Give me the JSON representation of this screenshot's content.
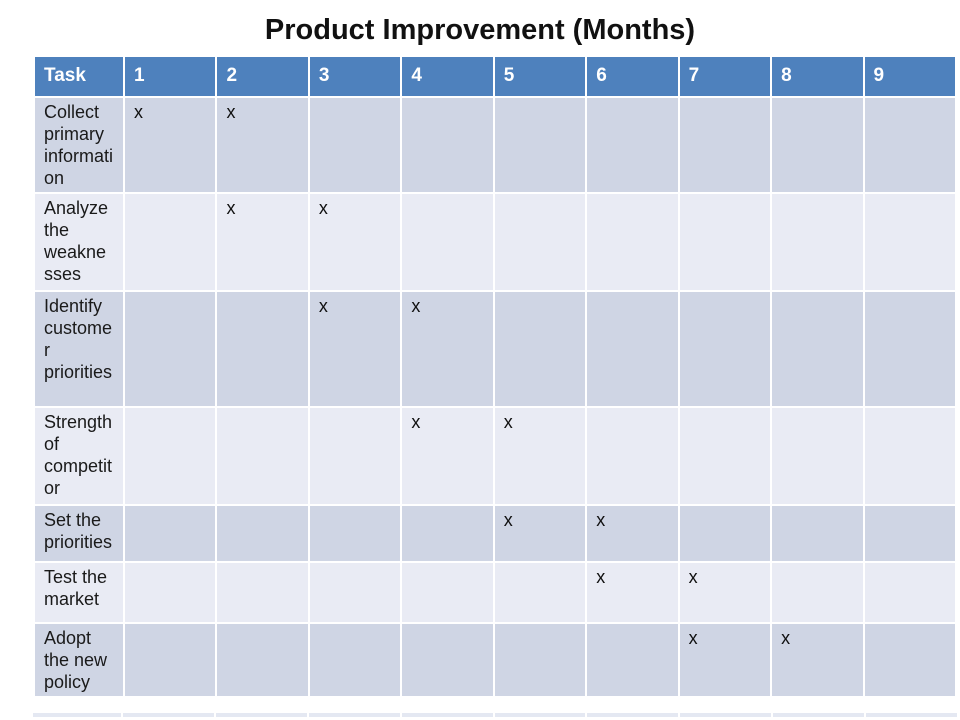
{
  "title": "Product Improvement (Months)",
  "colors": {
    "header-bg": "#4E81BD",
    "header-text": "#FFFFFF",
    "band-dark": "#CFD5E4",
    "band-light": "#E9EBF4",
    "grid": "#FFFFFF",
    "text": "#1A1A1A"
  },
  "chart_data": {
    "type": "table",
    "title": "Product Improvement (Months)",
    "columns": [
      "Task",
      "1",
      "2",
      "3",
      "4",
      "5",
      "6",
      "7",
      "8",
      "9"
    ],
    "mark": "x",
    "x_axis_unit": "month",
    "rows": [
      {
        "task": "Collect primary information",
        "months": [
          1,
          2
        ]
      },
      {
        "task": "Analyze the weaknesses",
        "months": [
          2,
          3
        ]
      },
      {
        "task": "Identify customer priorities",
        "months": [
          3,
          4
        ]
      },
      {
        "task": "Strength of competitor",
        "months": [
          4,
          5
        ]
      },
      {
        "task": "Set the priorities",
        "months": [
          5,
          6
        ]
      },
      {
        "task": "Test the market",
        "months": [
          6,
          7
        ]
      },
      {
        "task": "Adopt the new policy",
        "months": [
          7,
          8
        ]
      }
    ]
  }
}
